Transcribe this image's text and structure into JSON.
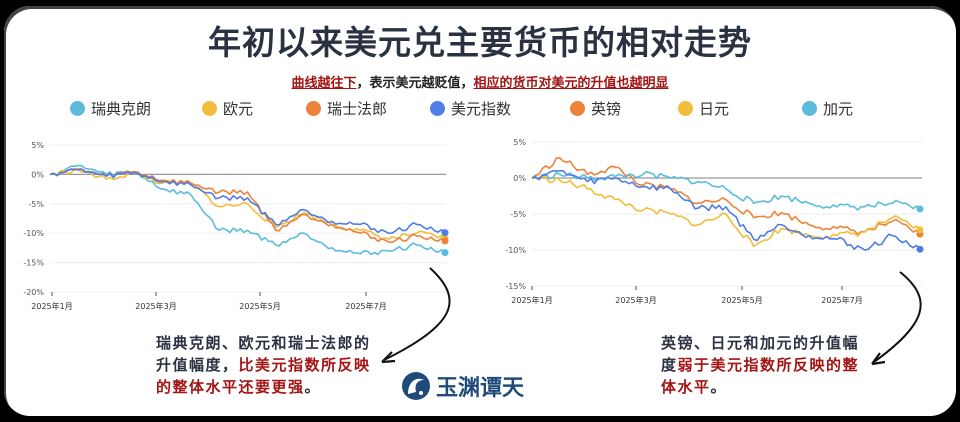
{
  "header": {
    "title": "年初以来美元兑主要货币的相对走势",
    "subtitle_part1": "曲线越往下",
    "subtitle_part2": "，表示美元越贬值，",
    "subtitle_part3": "相应的货币对美元的升值也越明显"
  },
  "legend": [
    {
      "label": "瑞典克朗",
      "color": "#5bbcdc"
    },
    {
      "label": "欧元",
      "color": "#f2bd3a"
    },
    {
      "label": "瑞士法郎",
      "color": "#ec833a"
    },
    {
      "label": "美元指数",
      "color": "#4f7de6"
    },
    {
      "label": "英镑",
      "color": "#ec833a"
    },
    {
      "label": "日元",
      "color": "#f2bd3a"
    },
    {
      "label": "加元",
      "color": "#5bbcdc"
    }
  ],
  "notes": {
    "left_plain": "瑞典克朗、欧元和瑞士法郎的升值幅度，",
    "left_red": "比美元指数所反映的整体水平还要更强",
    "left_end": "。",
    "right_plain": "英镑、日元和加元的升值幅度",
    "right_red": "弱于美元指数所反映的整体水平",
    "right_end": "。"
  },
  "logo": {
    "text": "玉渊谭天"
  },
  "chart_data": [
    {
      "type": "line",
      "title": "",
      "xlabel": "",
      "ylabel": "",
      "x_ticks": [
        "2025年1月",
        "2025年3月",
        "2025年5月",
        "2025年7月"
      ],
      "y_ticks": [
        "5%",
        "0%",
        "-5%",
        "-10%",
        "-15%",
        "-20%"
      ],
      "ylim": [
        -20,
        5
      ],
      "grid": true,
      "x": [
        "2025-01",
        "2025-01b",
        "2025-02",
        "2025-02b",
        "2025-03",
        "2025-03b",
        "2025-04",
        "2025-04b",
        "2025-05",
        "2025-05b",
        "2025-06",
        "2025-06b",
        "2025-07",
        "2025-07b",
        "2025-08"
      ],
      "series": [
        {
          "name": "瑞典克朗",
          "color": "#5bbcdc",
          "values": [
            0,
            1.5,
            0,
            0.5,
            -2.5,
            -3.5,
            -9.5,
            -9.5,
            -12,
            -10,
            -12.5,
            -13.5,
            -13,
            -12,
            -13.3
          ]
        },
        {
          "name": "欧元",
          "color": "#f2bd3a",
          "values": [
            0,
            0.8,
            -0.8,
            0.2,
            -1.5,
            -1.5,
            -5.5,
            -5.0,
            -9.0,
            -6.5,
            -8.5,
            -9.5,
            -11,
            -10,
            -10.8
          ]
        },
        {
          "name": "瑞士法郎",
          "color": "#ec833a",
          "values": [
            0,
            0.9,
            -0.3,
            0.5,
            -1.0,
            -1.5,
            -3.0,
            -3.0,
            -9.5,
            -6.8,
            -8.5,
            -10.0,
            -11.5,
            -10.5,
            -11.3
          ]
        },
        {
          "name": "美元指数",
          "color": "#4f7de6",
          "values": [
            0,
            0.8,
            -0.3,
            0.3,
            -1.2,
            -1.8,
            -4.0,
            -4.0,
            -8.5,
            -6.0,
            -8.0,
            -8.5,
            -10.0,
            -8.5,
            -9.9
          ]
        }
      ]
    },
    {
      "type": "line",
      "title": "",
      "xlabel": "",
      "ylabel": "",
      "x_ticks": [
        "2025年1月",
        "2025年3月",
        "2025年5月",
        "2025年7月"
      ],
      "y_ticks": [
        "5%",
        "0%",
        "-5%",
        "-10%",
        "-15%"
      ],
      "ylim": [
        -15,
        5
      ],
      "grid": true,
      "x": [
        "2025-01",
        "2025-01b",
        "2025-02",
        "2025-02b",
        "2025-03",
        "2025-03b",
        "2025-04",
        "2025-04b",
        "2025-05",
        "2025-05b",
        "2025-06",
        "2025-06b",
        "2025-07",
        "2025-07b",
        "2025-08"
      ],
      "series": [
        {
          "name": "英镑",
          "color": "#ec833a",
          "values": [
            0,
            2.8,
            0.5,
            1.5,
            -1.0,
            -1.5,
            -3.5,
            -3.0,
            -5.5,
            -4.8,
            -6.5,
            -7.0,
            -7.5,
            -6.0,
            -7.8
          ]
        },
        {
          "name": "日元",
          "color": "#f2bd3a",
          "values": [
            0,
            -0.3,
            -1.5,
            -3.0,
            -4.5,
            -5.0,
            -6.5,
            -5.0,
            -9.5,
            -7.0,
            -8.0,
            -8.0,
            -7.5,
            -5.5,
            -7.2
          ]
        },
        {
          "name": "加元",
          "color": "#5bbcdc",
          "values": [
            0,
            0.5,
            0.0,
            0.2,
            0.5,
            0.0,
            -0.5,
            -1.5,
            -3.5,
            -2.5,
            -3.5,
            -4.0,
            -4.0,
            -3.5,
            -4.3
          ]
        },
        {
          "name": "美元指数",
          "color": "#4f7de6",
          "values": [
            0,
            1.0,
            -0.5,
            0.0,
            -1.2,
            -1.5,
            -4.2,
            -4.0,
            -8.5,
            -6.5,
            -8.0,
            -8.5,
            -10.0,
            -8.0,
            -9.9
          ]
        }
      ]
    }
  ]
}
